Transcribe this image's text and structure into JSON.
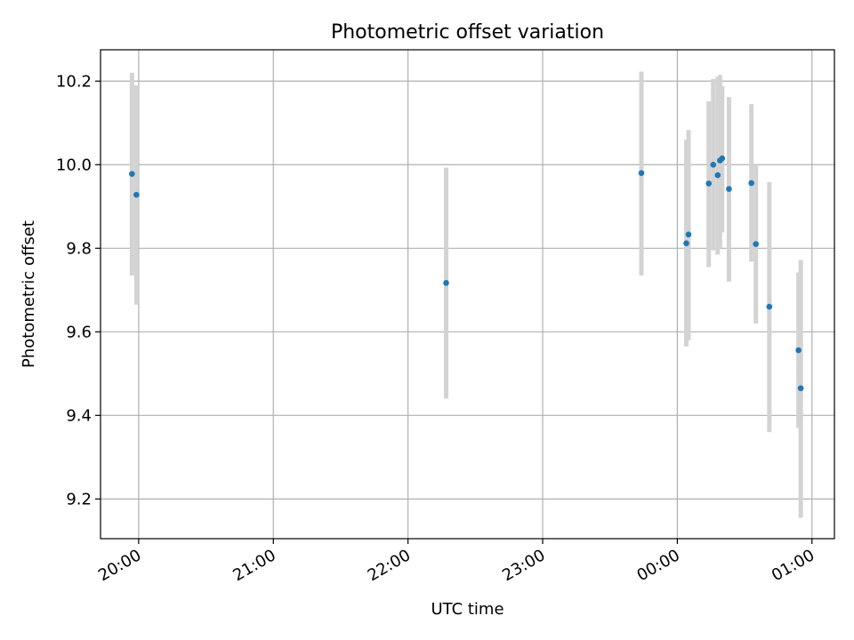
{
  "chart_data": {
    "type": "scatter",
    "title": "Photometric offset variation",
    "xlabel": "UTC time",
    "ylabel": "Photometric offset",
    "x_ticks": [
      "20:00",
      "21:00",
      "22:00",
      "23:00",
      "00:00",
      "01:00"
    ],
    "y_ticks": [
      "9.2",
      "9.4",
      "9.6",
      "9.8",
      "10.0",
      "10.2"
    ],
    "grid": true,
    "colors": {
      "points": "#1f77b4",
      "errorbars": "#d3d3d3",
      "grid": "#b0b0b0"
    },
    "xlim": [
      "19:43",
      "01:10"
    ],
    "ylim": [
      9.105,
      10.275
    ],
    "points": [
      {
        "x": "19:57",
        "y": 9.978,
        "ylo": 9.735,
        "yhi": 10.22
      },
      {
        "x": "19:59",
        "y": 9.928,
        "ylo": 9.665,
        "yhi": 10.19
      },
      {
        "x": "22:17",
        "y": 9.717,
        "ylo": 9.44,
        "yhi": 9.993
      },
      {
        "x": "23:44",
        "y": 9.98,
        "ylo": 9.735,
        "yhi": 10.223
      },
      {
        "x": "00:04",
        "y": 9.812,
        "ylo": 9.565,
        "yhi": 10.06
      },
      {
        "x": "00:05",
        "y": 9.833,
        "ylo": 9.58,
        "yhi": 10.083
      },
      {
        "x": "00:14",
        "y": 9.955,
        "ylo": 9.755,
        "yhi": 10.152
      },
      {
        "x": "00:16",
        "y": 10.0,
        "ylo": 9.795,
        "yhi": 10.205
      },
      {
        "x": "00:18",
        "y": 9.975,
        "ylo": 9.785,
        "yhi": 10.21
      },
      {
        "x": "00:19",
        "y": 10.01,
        "ylo": 9.8,
        "yhi": 10.215
      },
      {
        "x": "00:20",
        "y": 10.015,
        "ylo": 9.838,
        "yhi": 10.188
      },
      {
        "x": "00:23",
        "y": 9.942,
        "ylo": 9.72,
        "yhi": 10.162
      },
      {
        "x": "00:33",
        "y": 9.956,
        "ylo": 9.768,
        "yhi": 10.145
      },
      {
        "x": "00:35",
        "y": 9.81,
        "ylo": 9.62,
        "yhi": 10.0
      },
      {
        "x": "00:41",
        "y": 9.66,
        "ylo": 9.36,
        "yhi": 9.958
      },
      {
        "x": "00:54",
        "y": 9.556,
        "ylo": 9.37,
        "yhi": 9.742
      },
      {
        "x": "00:55",
        "y": 9.465,
        "ylo": 9.155,
        "yhi": 9.772
      }
    ]
  }
}
